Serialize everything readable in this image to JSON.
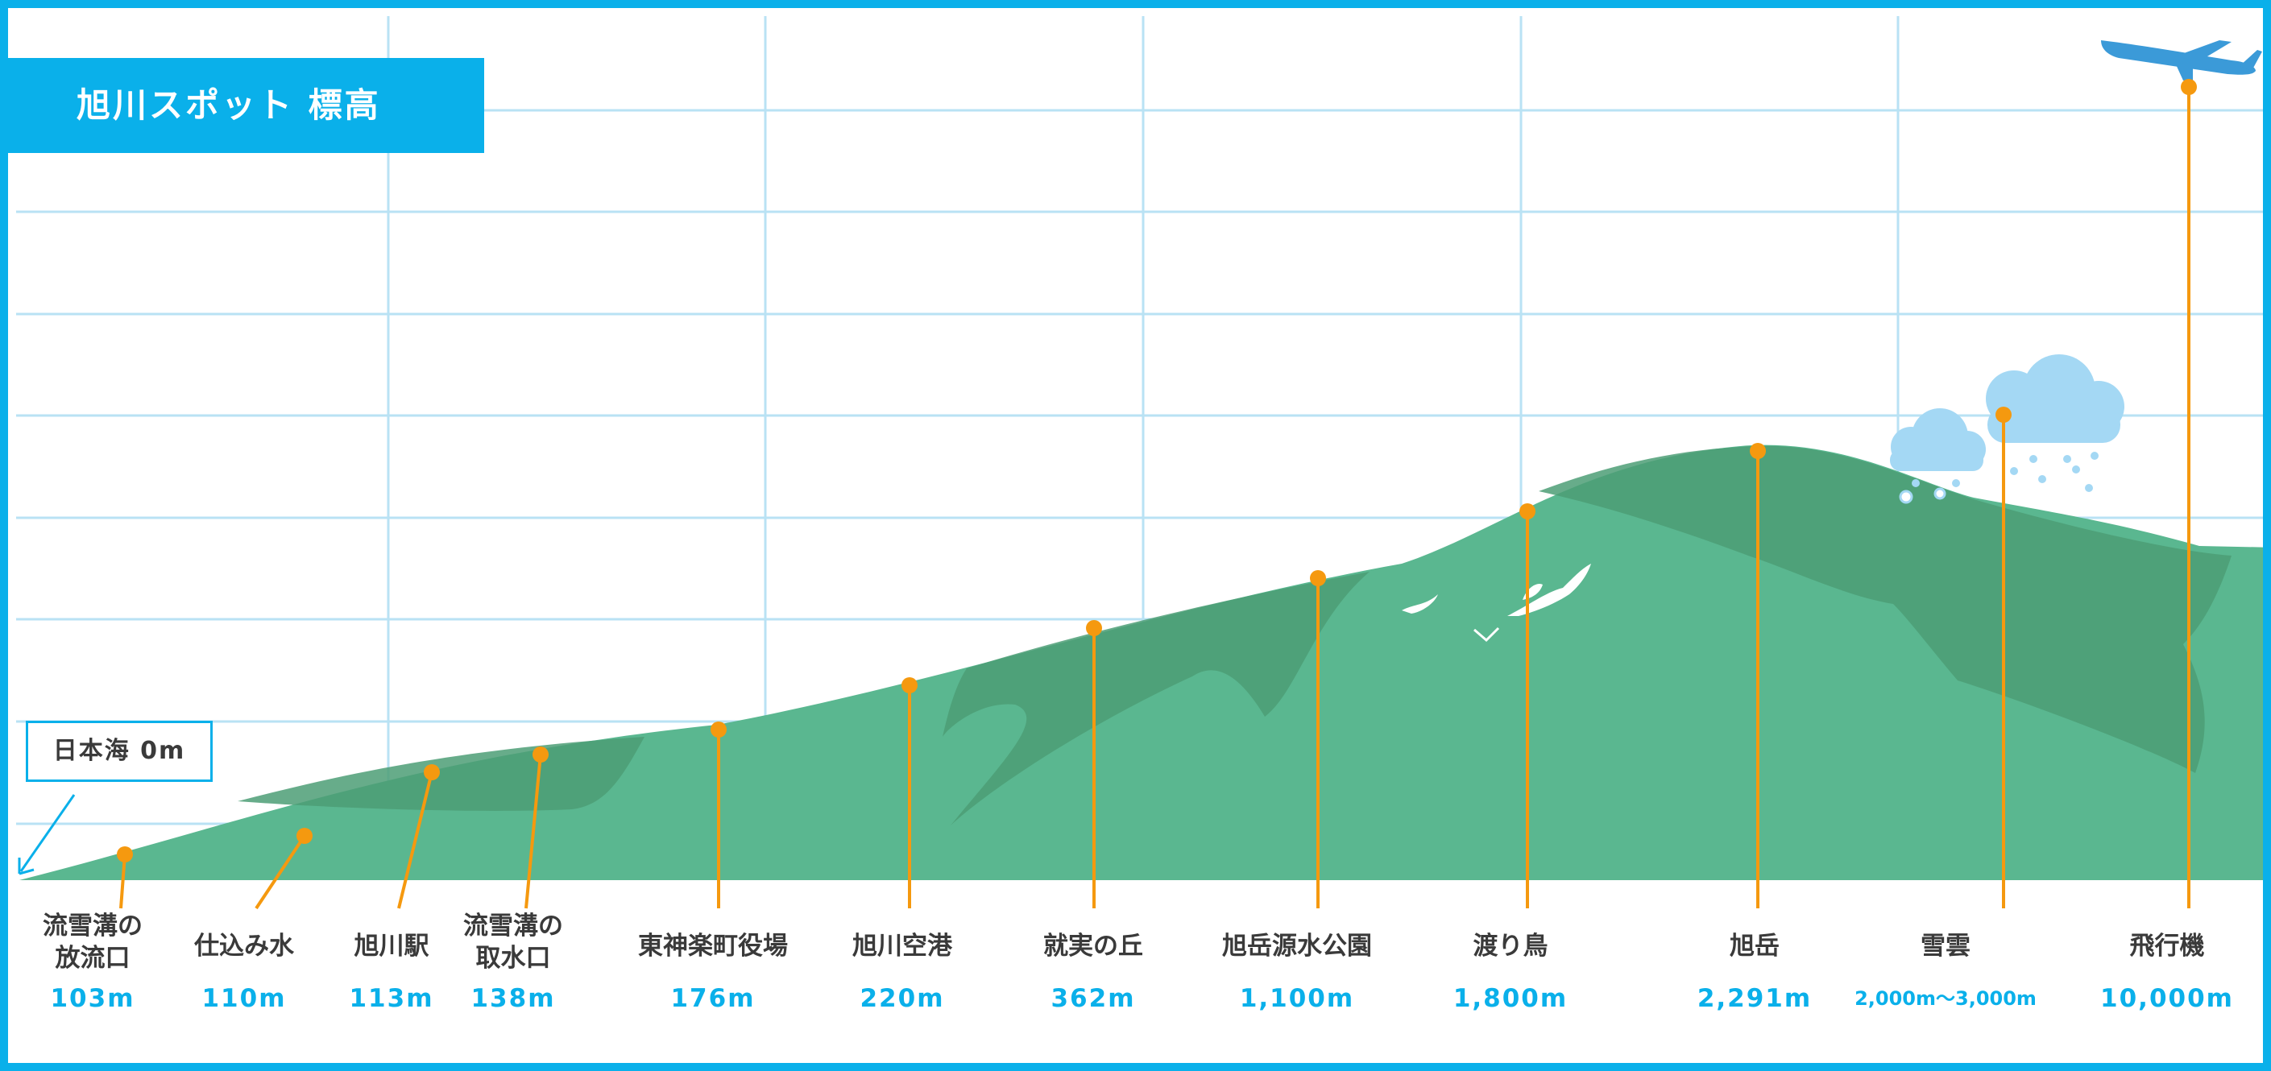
{
  "title": "旭川スポット 標高",
  "sea_label": "日本海 0m",
  "colors": {
    "frame": "#0ab0ea",
    "grid": "#b9e2f4",
    "mountain_light": "#5ab790",
    "mountain_dark": "#4c9e76",
    "marker": "#f5990f",
    "label_text": "#3a3a3a",
    "value_text": "#0ab0ea",
    "cloud": "#a4d8f4",
    "airplane": "#3b9ad8"
  },
  "spots": [
    {
      "name": "流雪溝の\n放流口",
      "elevation": "103m"
    },
    {
      "name": "仕込み水",
      "elevation": "110m"
    },
    {
      "name": "旭川駅",
      "elevation": "113m"
    },
    {
      "name": "流雪溝の\n取水口",
      "elevation": "138m"
    },
    {
      "name": "東神楽町役場",
      "elevation": "176m"
    },
    {
      "name": "旭川空港",
      "elevation": "220m"
    },
    {
      "name": "就実の丘",
      "elevation": "362m"
    },
    {
      "name": "旭岳源水公園",
      "elevation": "1,100m"
    },
    {
      "name": "渡り鳥",
      "elevation": "1,800m"
    },
    {
      "name": "旭岳",
      "elevation": "2,291m"
    },
    {
      "name": "雪雲",
      "elevation": "2,000m〜3,000m"
    },
    {
      "name": "飛行機",
      "elevation": "10,000m"
    }
  ],
  "icons": [
    "cloud-icon",
    "snow-cloud-icon",
    "bird-icon",
    "airplane-icon"
  ]
}
